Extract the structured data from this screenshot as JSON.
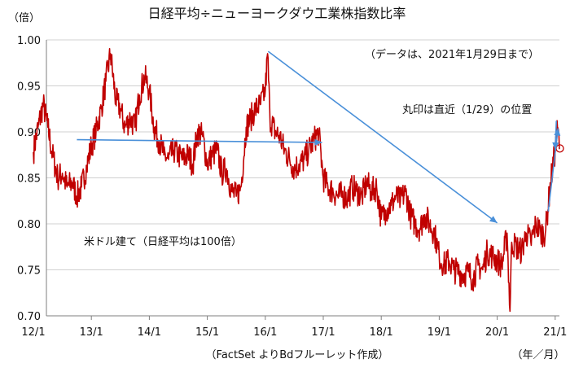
{
  "chart_data": {
    "type": "line",
    "title": "日経平均÷ニューヨークダウ工業株指数比率",
    "subtitle": "（データは、2021年1月29日まで）",
    "y_unit_label": "（倍）",
    "x_unit_label": "（年／月）",
    "source": "（FactSet よりBdフルーレット作成）",
    "ylim": [
      0.7,
      1.0
    ],
    "yticks": [
      "0.70",
      "0.75",
      "0.80",
      "0.85",
      "0.90",
      "0.95",
      "1.00"
    ],
    "xlim": [
      2012.0,
      2021.1
    ],
    "xticks": [
      "12/1",
      "13/1",
      "14/1",
      "15/1",
      "16/1",
      "17/1",
      "18/1",
      "19/1",
      "20/1",
      "21/1"
    ],
    "grid": "horizontal",
    "line_color": "#c00000",
    "arrow_color": "#4a90d9",
    "series": [
      {
        "values": [
          [
            2012.0,
            0.878
          ],
          [
            2012.08,
            0.905
          ],
          [
            2012.17,
            0.93
          ],
          [
            2012.25,
            0.905
          ],
          [
            2012.33,
            0.875
          ],
          [
            2012.42,
            0.85
          ],
          [
            2012.5,
            0.855
          ],
          [
            2012.58,
            0.84
          ],
          [
            2012.67,
            0.845
          ],
          [
            2012.75,
            0.83
          ],
          [
            2012.83,
            0.84
          ],
          [
            2012.92,
            0.862
          ],
          [
            2013.0,
            0.885
          ],
          [
            2013.08,
            0.9
          ],
          [
            2013.17,
            0.925
          ],
          [
            2013.25,
            0.955
          ],
          [
            2013.33,
            0.985
          ],
          [
            2013.42,
            0.935
          ],
          [
            2013.5,
            0.925
          ],
          [
            2013.58,
            0.905
          ],
          [
            2013.67,
            0.915
          ],
          [
            2013.75,
            0.905
          ],
          [
            2013.83,
            0.94
          ],
          [
            2013.92,
            0.96
          ],
          [
            2014.0,
            0.945
          ],
          [
            2014.08,
            0.905
          ],
          [
            2014.17,
            0.89
          ],
          [
            2014.25,
            0.875
          ],
          [
            2014.33,
            0.87
          ],
          [
            2014.42,
            0.88
          ],
          [
            2014.5,
            0.875
          ],
          [
            2014.58,
            0.87
          ],
          [
            2014.67,
            0.875
          ],
          [
            2014.75,
            0.865
          ],
          [
            2014.83,
            0.9
          ],
          [
            2014.92,
            0.895
          ],
          [
            2015.0,
            0.865
          ],
          [
            2015.08,
            0.875
          ],
          [
            2015.17,
            0.88
          ],
          [
            2015.25,
            0.855
          ],
          [
            2015.33,
            0.86
          ],
          [
            2015.42,
            0.835
          ],
          [
            2015.5,
            0.83
          ],
          [
            2015.58,
            0.84
          ],
          [
            2015.67,
            0.905
          ],
          [
            2015.75,
            0.915
          ],
          [
            2015.83,
            0.925
          ],
          [
            2015.92,
            0.93
          ],
          [
            2016.0,
            0.945
          ],
          [
            2016.04,
            0.985
          ],
          [
            2016.08,
            0.915
          ],
          [
            2016.17,
            0.9
          ],
          [
            2016.25,
            0.895
          ],
          [
            2016.33,
            0.88
          ],
          [
            2016.42,
            0.87
          ],
          [
            2016.5,
            0.86
          ],
          [
            2016.58,
            0.865
          ],
          [
            2016.67,
            0.87
          ],
          [
            2016.75,
            0.88
          ],
          [
            2016.83,
            0.89
          ],
          [
            2016.92,
            0.9
          ],
          [
            2017.0,
            0.85
          ],
          [
            2017.08,
            0.84
          ],
          [
            2017.17,
            0.835
          ],
          [
            2017.25,
            0.83
          ],
          [
            2017.33,
            0.832
          ],
          [
            2017.42,
            0.828
          ],
          [
            2017.5,
            0.84
          ],
          [
            2017.58,
            0.835
          ],
          [
            2017.67,
            0.83
          ],
          [
            2017.75,
            0.845
          ],
          [
            2017.83,
            0.835
          ],
          [
            2017.92,
            0.84
          ],
          [
            2018.0,
            0.805
          ],
          [
            2018.08,
            0.815
          ],
          [
            2018.17,
            0.82
          ],
          [
            2018.25,
            0.83
          ],
          [
            2018.33,
            0.825
          ],
          [
            2018.42,
            0.835
          ],
          [
            2018.5,
            0.81
          ],
          [
            2018.58,
            0.8
          ],
          [
            2018.67,
            0.795
          ],
          [
            2018.75,
            0.81
          ],
          [
            2018.83,
            0.8
          ],
          [
            2018.92,
            0.79
          ],
          [
            2019.0,
            0.765
          ],
          [
            2019.08,
            0.755
          ],
          [
            2019.17,
            0.76
          ],
          [
            2019.25,
            0.75
          ],
          [
            2019.33,
            0.748
          ],
          [
            2019.42,
            0.745
          ],
          [
            2019.5,
            0.748
          ],
          [
            2019.58,
            0.74
          ],
          [
            2019.67,
            0.755
          ],
          [
            2019.75,
            0.75
          ],
          [
            2019.83,
            0.77
          ],
          [
            2019.92,
            0.765
          ],
          [
            2020.0,
            0.76
          ],
          [
            2020.08,
            0.755
          ],
          [
            2020.17,
            0.79
          ],
          [
            2020.22,
            0.705
          ],
          [
            2020.25,
            0.78
          ],
          [
            2020.33,
            0.775
          ],
          [
            2020.42,
            0.77
          ],
          [
            2020.5,
            0.79
          ],
          [
            2020.58,
            0.78
          ],
          [
            2020.67,
            0.8
          ],
          [
            2020.75,
            0.79
          ],
          [
            2020.83,
            0.79
          ],
          [
            2020.92,
            0.845
          ],
          [
            2021.0,
            0.88
          ],
          [
            2021.04,
            0.905
          ],
          [
            2021.08,
            0.882
          ]
        ]
      }
    ],
    "annotations": [
      "米ドル建て（日経平均は100倍）",
      "丸印は直近（1/29）の位置"
    ]
  }
}
